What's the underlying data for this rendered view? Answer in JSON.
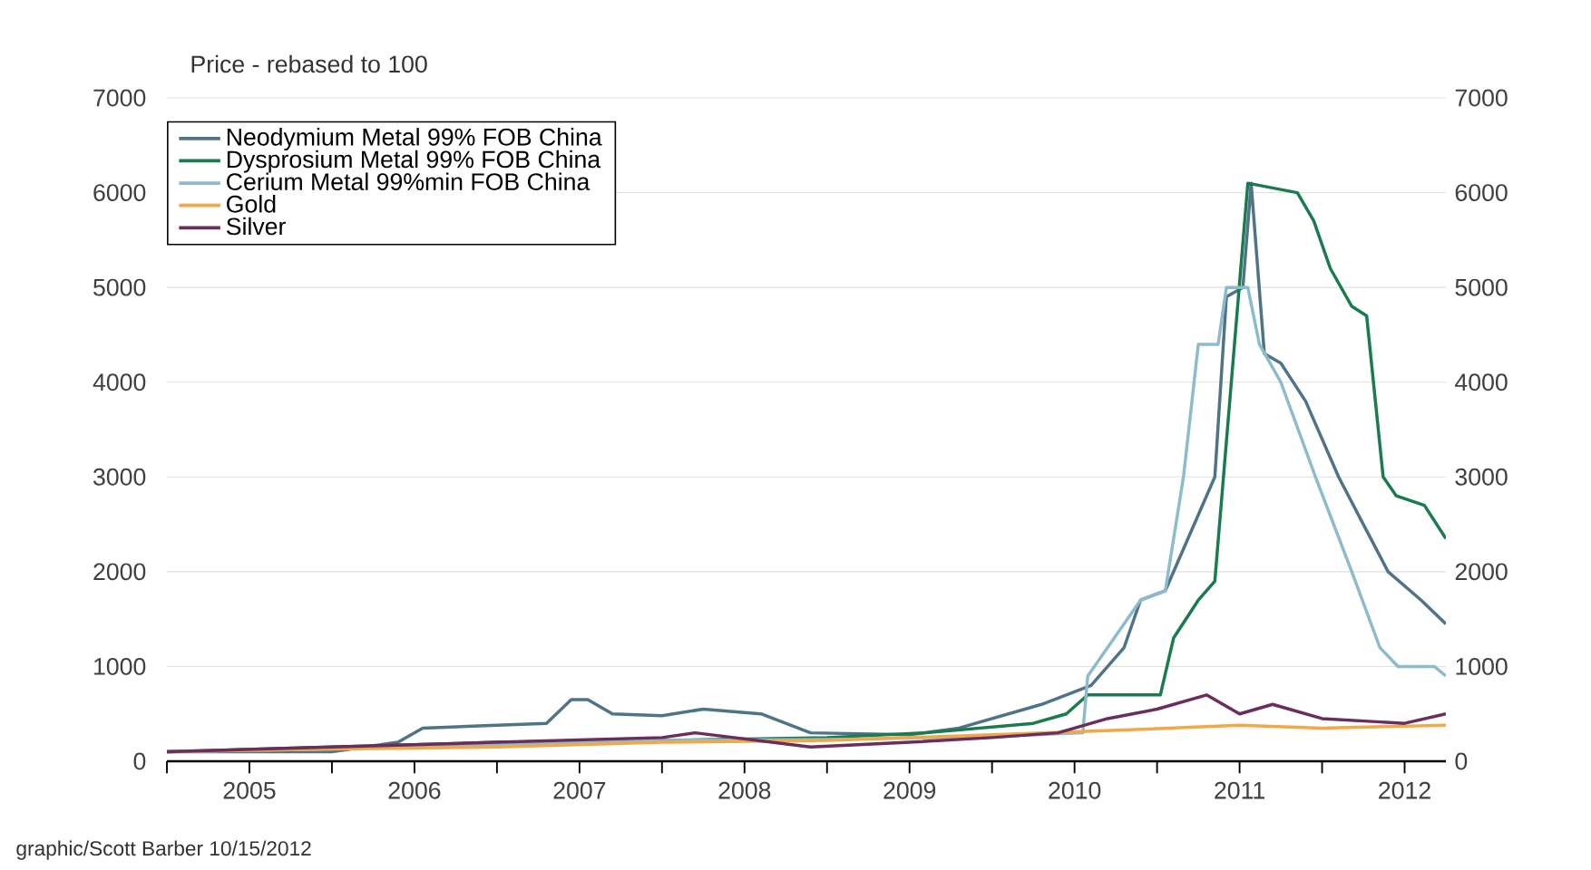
{
  "chart_data": {
    "type": "line",
    "title": "Price - rebased to 100",
    "annotations": [
      "graphic/Scott Barber 10/15/2012"
    ],
    "xlim": [
      2005,
      2012.75
    ],
    "ylim": [
      0,
      7000
    ],
    "y2lim": [
      0,
      7000
    ],
    "xticks": [
      {
        "value": 2005,
        "label": null
      },
      {
        "value": 2005.5,
        "label": "2005"
      },
      {
        "value": 2006,
        "label": null
      },
      {
        "value": 2006.5,
        "label": "2006"
      },
      {
        "value": 2007,
        "label": null
      },
      {
        "value": 2007.5,
        "label": "2007"
      },
      {
        "value": 2008,
        "label": null
      },
      {
        "value": 2008.5,
        "label": "2008"
      },
      {
        "value": 2009,
        "label": null
      },
      {
        "value": 2009.5,
        "label": "2009"
      },
      {
        "value": 2010,
        "label": null
      },
      {
        "value": 2010.5,
        "label": "2010"
      },
      {
        "value": 2011,
        "label": null
      },
      {
        "value": 2011.5,
        "label": "2011"
      },
      {
        "value": 2012,
        "label": null
      },
      {
        "value": 2012.5,
        "label": "2012"
      }
    ],
    "yticks": [
      0,
      1000,
      2000,
      3000,
      4000,
      5000,
      6000,
      7000
    ],
    "y2ticks": [
      0,
      1000,
      2000,
      3000,
      4000,
      5000,
      6000,
      7000
    ],
    "grid": "y",
    "legend": "top left",
    "marker": "none",
    "line_style": "solid",
    "series": [
      {
        "name": "Neodymium Metal 99% FOB China",
        "color": "#4f7387",
        "x": [
          2005,
          2006,
          2006.4,
          2006.55,
          2007,
          2007.3,
          2007.45,
          2007.55,
          2007.7,
          2008,
          2008.25,
          2008.6,
          2008.9,
          2009.5,
          2009.8,
          2010.3,
          2010.6,
          2010.8,
          2010.9,
          2011.05,
          2011.35,
          2011.42,
          2011.52,
          2011.57,
          2011.65,
          2011.75,
          2011.9,
          2012.1,
          2012.25,
          2012.4,
          2012.6,
          2012.75
        ],
        "values": [
          100,
          100,
          200,
          350,
          380,
          400,
          650,
          650,
          500,
          480,
          550,
          500,
          300,
          280,
          350,
          600,
          800,
          1200,
          1700,
          1800,
          3000,
          4900,
          5000,
          6100,
          4300,
          4200,
          3800,
          3000,
          2500,
          2000,
          1700,
          1450
        ]
      },
      {
        "name": "Dysprosium Metal 99% FOB China",
        "color": "#1a7a50",
        "x": [
          2005,
          2006,
          2007,
          2008,
          2009,
          2009.6,
          2010.25,
          2010.45,
          2010.58,
          2011.02,
          2011.1,
          2011.25,
          2011.35,
          2011.45,
          2011.55,
          2011.85,
          2011.95,
          2012.05,
          2012.18,
          2012.27,
          2012.37,
          2012.45,
          2012.62,
          2012.75
        ],
        "values": [
          100,
          150,
          200,
          220,
          250,
          300,
          400,
          500,
          700,
          700,
          1300,
          1700,
          1900,
          4000,
          6100,
          6000,
          5700,
          5200,
          4800,
          4700,
          3000,
          2800,
          2700,
          2350
        ]
      },
      {
        "name": "Cerium Metal 99%min FOB China",
        "color": "#8cbccc",
        "x": [
          2005,
          2006,
          2007,
          2008,
          2009,
          2010,
          2010.55,
          2010.58,
          2010.9,
          2011.05,
          2011.16,
          2011.25,
          2011.37,
          2011.42,
          2011.55,
          2011.62,
          2011.75,
          2011.96,
          2012.18,
          2012.35,
          2012.46,
          2012.68,
          2012.75
        ],
        "values": [
          100,
          130,
          180,
          220,
          230,
          260,
          300,
          900,
          1700,
          1800,
          3000,
          4400,
          4400,
          5000,
          5000,
          4400,
          4000,
          3000,
          2000,
          1200,
          1000,
          1000,
          900
        ]
      },
      {
        "name": "Gold",
        "color": "#f0a848",
        "x": [
          2005,
          2006,
          2007,
          2008,
          2009,
          2010,
          2010.8,
          2011.5,
          2012,
          2012.75
        ],
        "values": [
          100,
          130,
          150,
          200,
          220,
          280,
          330,
          380,
          350,
          380
        ]
      },
      {
        "name": "Silver",
        "color": "#6b2d5c",
        "x": [
          2005,
          2006,
          2007,
          2008,
          2008.2,
          2008.9,
          2009.5,
          2010,
          2010.4,
          2010.7,
          2011,
          2011.3,
          2011.5,
          2011.7,
          2012,
          2012.5,
          2012.75
        ],
        "values": [
          100,
          150,
          200,
          250,
          300,
          150,
          200,
          250,
          300,
          450,
          550,
          700,
          500,
          600,
          450,
          400,
          500
        ]
      }
    ]
  }
}
